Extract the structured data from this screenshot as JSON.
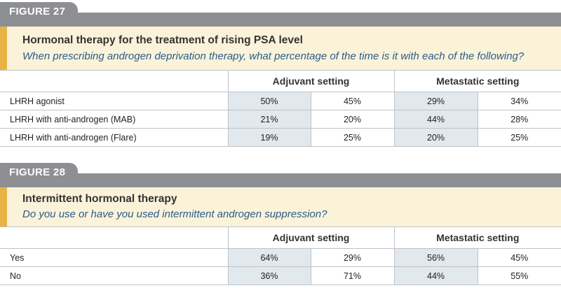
{
  "figure27": {
    "tab": "FIGURE 27",
    "title": "Hormonal therapy for the treatment of rising PSA level",
    "subtitle": "When prescribing androgen deprivation therapy, what percentage of the time is it with each of the following?",
    "col_adjuvant": "Adjuvant setting",
    "col_metastatic": "Metastatic setting",
    "rows": [
      {
        "label": "LHRH agonist",
        "values": [
          "50%",
          "45%",
          "29%",
          "34%"
        ]
      },
      {
        "label": "LHRH with anti-androgen (MAB)",
        "values": [
          "21%",
          "20%",
          "44%",
          "28%"
        ]
      },
      {
        "label": "LHRH with anti-androgen (Flare)",
        "values": [
          "19%",
          "25%",
          "20%",
          "25%"
        ]
      }
    ]
  },
  "figure28": {
    "tab": "FIGURE 28",
    "title": "Intermittent hormonal therapy",
    "subtitle": "Do you use or have you used intermittent androgen suppression?",
    "col_adjuvant": "Adjuvant setting",
    "col_metastatic": "Metastatic setting",
    "rows": [
      {
        "label": "Yes",
        "values": [
          "64%",
          "29%",
          "56%",
          "45%"
        ]
      },
      {
        "label": "No",
        "values": [
          "36%",
          "71%",
          "44%",
          "55%"
        ]
      }
    ]
  }
}
